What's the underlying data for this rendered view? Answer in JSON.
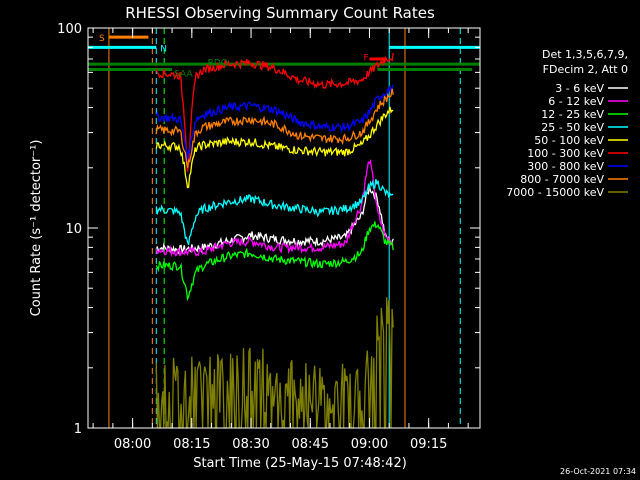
{
  "chart_data": {
    "type": "line",
    "title": "RHESSI Observing Summary Count Rates",
    "xlabel": "Start Time (25-May-15 07:48:42)",
    "ylabel": "Count Rate (s⁻¹ detector⁻¹)",
    "yscale": "log",
    "ylim": [
      1,
      100
    ],
    "xlim": [
      "07:48:42",
      "09:28:00"
    ],
    "xticks": [
      "08:00",
      "08:15",
      "08:30",
      "08:45",
      "09:00",
      "09:15"
    ],
    "yticks": [
      "1",
      "10",
      "100"
    ],
    "grid": false,
    "legend_placement": "top-right",
    "legend_header": [
      "Det 1,3,5,6,7,9,",
      "FDecim 2, Att 0"
    ],
    "series": [
      {
        "name": "3 - 6 keV",
        "color": "#ffffff",
        "x": [
          "08:06",
          "08:12",
          "08:18",
          "08:24",
          "08:30",
          "08:36",
          "08:42",
          "08:48",
          "08:54",
          "08:58",
          "09:00",
          "09:02",
          "09:04",
          "09:06"
        ],
        "y": [
          8.0,
          7.8,
          8.0,
          8.6,
          9.2,
          8.8,
          8.6,
          8.6,
          9.0,
          11.5,
          16.0,
          14.0,
          9.0,
          8.5
        ]
      },
      {
        "name": "6 - 12 keV",
        "color": "#ff00ff",
        "x": [
          "08:06",
          "08:12",
          "08:18",
          "08:24",
          "08:30",
          "08:36",
          "08:42",
          "08:48",
          "08:54",
          "08:58",
          "09:00",
          "09:02",
          "09:04",
          "09:06"
        ],
        "y": [
          7.8,
          7.6,
          7.6,
          8.4,
          8.6,
          8.0,
          8.0,
          8.0,
          8.4,
          13.0,
          22.0,
          12.0,
          9.0,
          8.5
        ]
      },
      {
        "name": "12 - 25 keV",
        "color": "#00ff00",
        "x": [
          "08:06",
          "08:12",
          "08:14",
          "08:16",
          "08:18",
          "08:24",
          "08:30",
          "08:36",
          "08:42",
          "08:48",
          "08:54",
          "08:58",
          "09:00",
          "09:02",
          "09:04",
          "09:06"
        ],
        "y": [
          6.5,
          6.5,
          4.5,
          6.0,
          6.5,
          7.2,
          7.5,
          7.0,
          6.8,
          6.6,
          6.8,
          7.5,
          10.0,
          10.5,
          8.5,
          8.0
        ]
      },
      {
        "name": "25 - 50 keV",
        "color": "#00ffff",
        "x": [
          "08:06",
          "08:12",
          "08:14",
          "08:16",
          "08:18",
          "08:24",
          "08:30",
          "08:36",
          "08:42",
          "08:48",
          "08:54",
          "08:58",
          "09:00",
          "09:02",
          "09:04",
          "09:06"
        ],
        "y": [
          12.5,
          12.0,
          8.0,
          11.5,
          12.5,
          13.5,
          14.0,
          13.0,
          12.5,
          12.0,
          12.5,
          13.5,
          16.0,
          17.0,
          15.0,
          14.0
        ]
      },
      {
        "name": "50 - 100 keV",
        "color": "#ffff00",
        "x": [
          "08:06",
          "08:12",
          "08:14",
          "08:16",
          "08:18",
          "08:24",
          "08:30",
          "08:36",
          "08:42",
          "08:48",
          "08:54",
          "08:58",
          "09:00",
          "09:02",
          "09:04",
          "09:06"
        ],
        "y": [
          26.0,
          25.5,
          16.0,
          25.0,
          26.0,
          27.0,
          27.0,
          25.5,
          24.5,
          24.0,
          24.0,
          26.0,
          29.0,
          33.0,
          37.0,
          40.0
        ]
      },
      {
        "name": "100 - 300 keV",
        "color": "#ff0000",
        "x": [
          "08:06",
          "08:12",
          "08:14",
          "08:16",
          "08:18",
          "08:24",
          "08:30",
          "08:36",
          "08:42",
          "08:48",
          "08:54",
          "08:58",
          "09:00",
          "09:02",
          "09:04",
          "09:06"
        ],
        "y": [
          60.0,
          58.0,
          18.0,
          57.0,
          62.0,
          66.0,
          67.0,
          63.0,
          55.0,
          52.0,
          53.0,
          55.0,
          60.0,
          65.0,
          70.0,
          72.0
        ]
      },
      {
        "name": "300 - 800 keV",
        "color": "#0000ff",
        "x": [
          "08:06",
          "08:12",
          "08:14",
          "08:16",
          "08:18",
          "08:24",
          "08:30",
          "08:36",
          "08:42",
          "08:48",
          "08:54",
          "08:58",
          "09:00",
          "09:02",
          "09:04",
          "09:06"
        ],
        "y": [
          36.0,
          35.0,
          22.0,
          35.0,
          37.0,
          40.0,
          41.0,
          39.0,
          34.0,
          32.0,
          32.0,
          34.0,
          38.0,
          44.0,
          48.0,
          50.0
        ]
      },
      {
        "name": "800 - 7000 keV",
        "color": "#ff8000",
        "x": [
          "08:06",
          "08:12",
          "08:14",
          "08:16",
          "08:18",
          "08:24",
          "08:30",
          "08:36",
          "08:42",
          "08:48",
          "08:54",
          "08:58",
          "09:00",
          "09:02",
          "09:04",
          "09:06"
        ],
        "y": [
          31.0,
          30.5,
          20.0,
          30.0,
          32.0,
          34.0,
          35.0,
          33.0,
          29.0,
          28.0,
          28.0,
          30.0,
          34.0,
          40.0,
          44.0,
          48.0
        ]
      },
      {
        "name": "7000 - 15000 keV",
        "color": "#808000",
        "x": [
          "08:06",
          "08:12",
          "08:18",
          "08:24",
          "08:30",
          "08:36",
          "08:42",
          "08:48",
          "08:54",
          "08:58",
          "09:00",
          "09:02",
          "09:04",
          "09:06"
        ],
        "y": [
          1.6,
          1.7,
          1.7,
          1.8,
          2.0,
          1.7,
          1.6,
          1.6,
          1.6,
          1.7,
          2.0,
          2.8,
          3.4,
          3.6
        ]
      }
    ],
    "annotations": [
      {
        "label": "S",
        "color": "#ff8000"
      },
      {
        "label": "N",
        "color": "#00ffff"
      },
      {
        "label": "RDQ",
        "color": "#008000"
      },
      {
        "label": "SAA",
        "color": "#008000"
      },
      {
        "label": "F",
        "color": "#ff0000"
      }
    ],
    "state_bars": [
      {
        "label": "S",
        "color": "#ff8000",
        "x1": "07:54",
        "x2": "08:04",
        "y": 90
      },
      {
        "label": "N",
        "color": "#00ffff",
        "x1": "07:48:42",
        "x2": "08:06",
        "y": 80
      },
      {
        "label": "N",
        "color": "#00ffff",
        "x1": "09:05",
        "x2": "09:28",
        "y": 80
      },
      {
        "label": "RDQ",
        "color": "#008000",
        "x1": "07:48:42",
        "x2": "09:28",
        "y": 66
      },
      {
        "label": "SAA",
        "color": "#008000",
        "x1": "07:48:42",
        "x2": "08:10",
        "y": 62
      },
      {
        "label": "SAA",
        "color": "#008000",
        "x1": "09:02",
        "x2": "09:26",
        "y": 62
      },
      {
        "label": "F",
        "color": "#ff0000",
        "x1": "09:00",
        "x2": "09:04",
        "y": 70
      }
    ],
    "vlines": [
      {
        "x": "07:54",
        "color": "#ff8000",
        "dash": false
      },
      {
        "x": "08:05",
        "color": "#ff8000",
        "dash": true
      },
      {
        "x": "08:06",
        "color": "#00ffff",
        "dash": true
      },
      {
        "x": "08:08",
        "color": "#00ff00",
        "dash": true
      },
      {
        "x": "09:05",
        "color": "#00ffff",
        "dash": false
      },
      {
        "x": "09:09",
        "color": "#ff8000",
        "dash": false
      },
      {
        "x": "09:23",
        "color": "#00ffff",
        "dash": true
      }
    ],
    "footer_timestamp": "26-Oct-2021 07:34"
  }
}
